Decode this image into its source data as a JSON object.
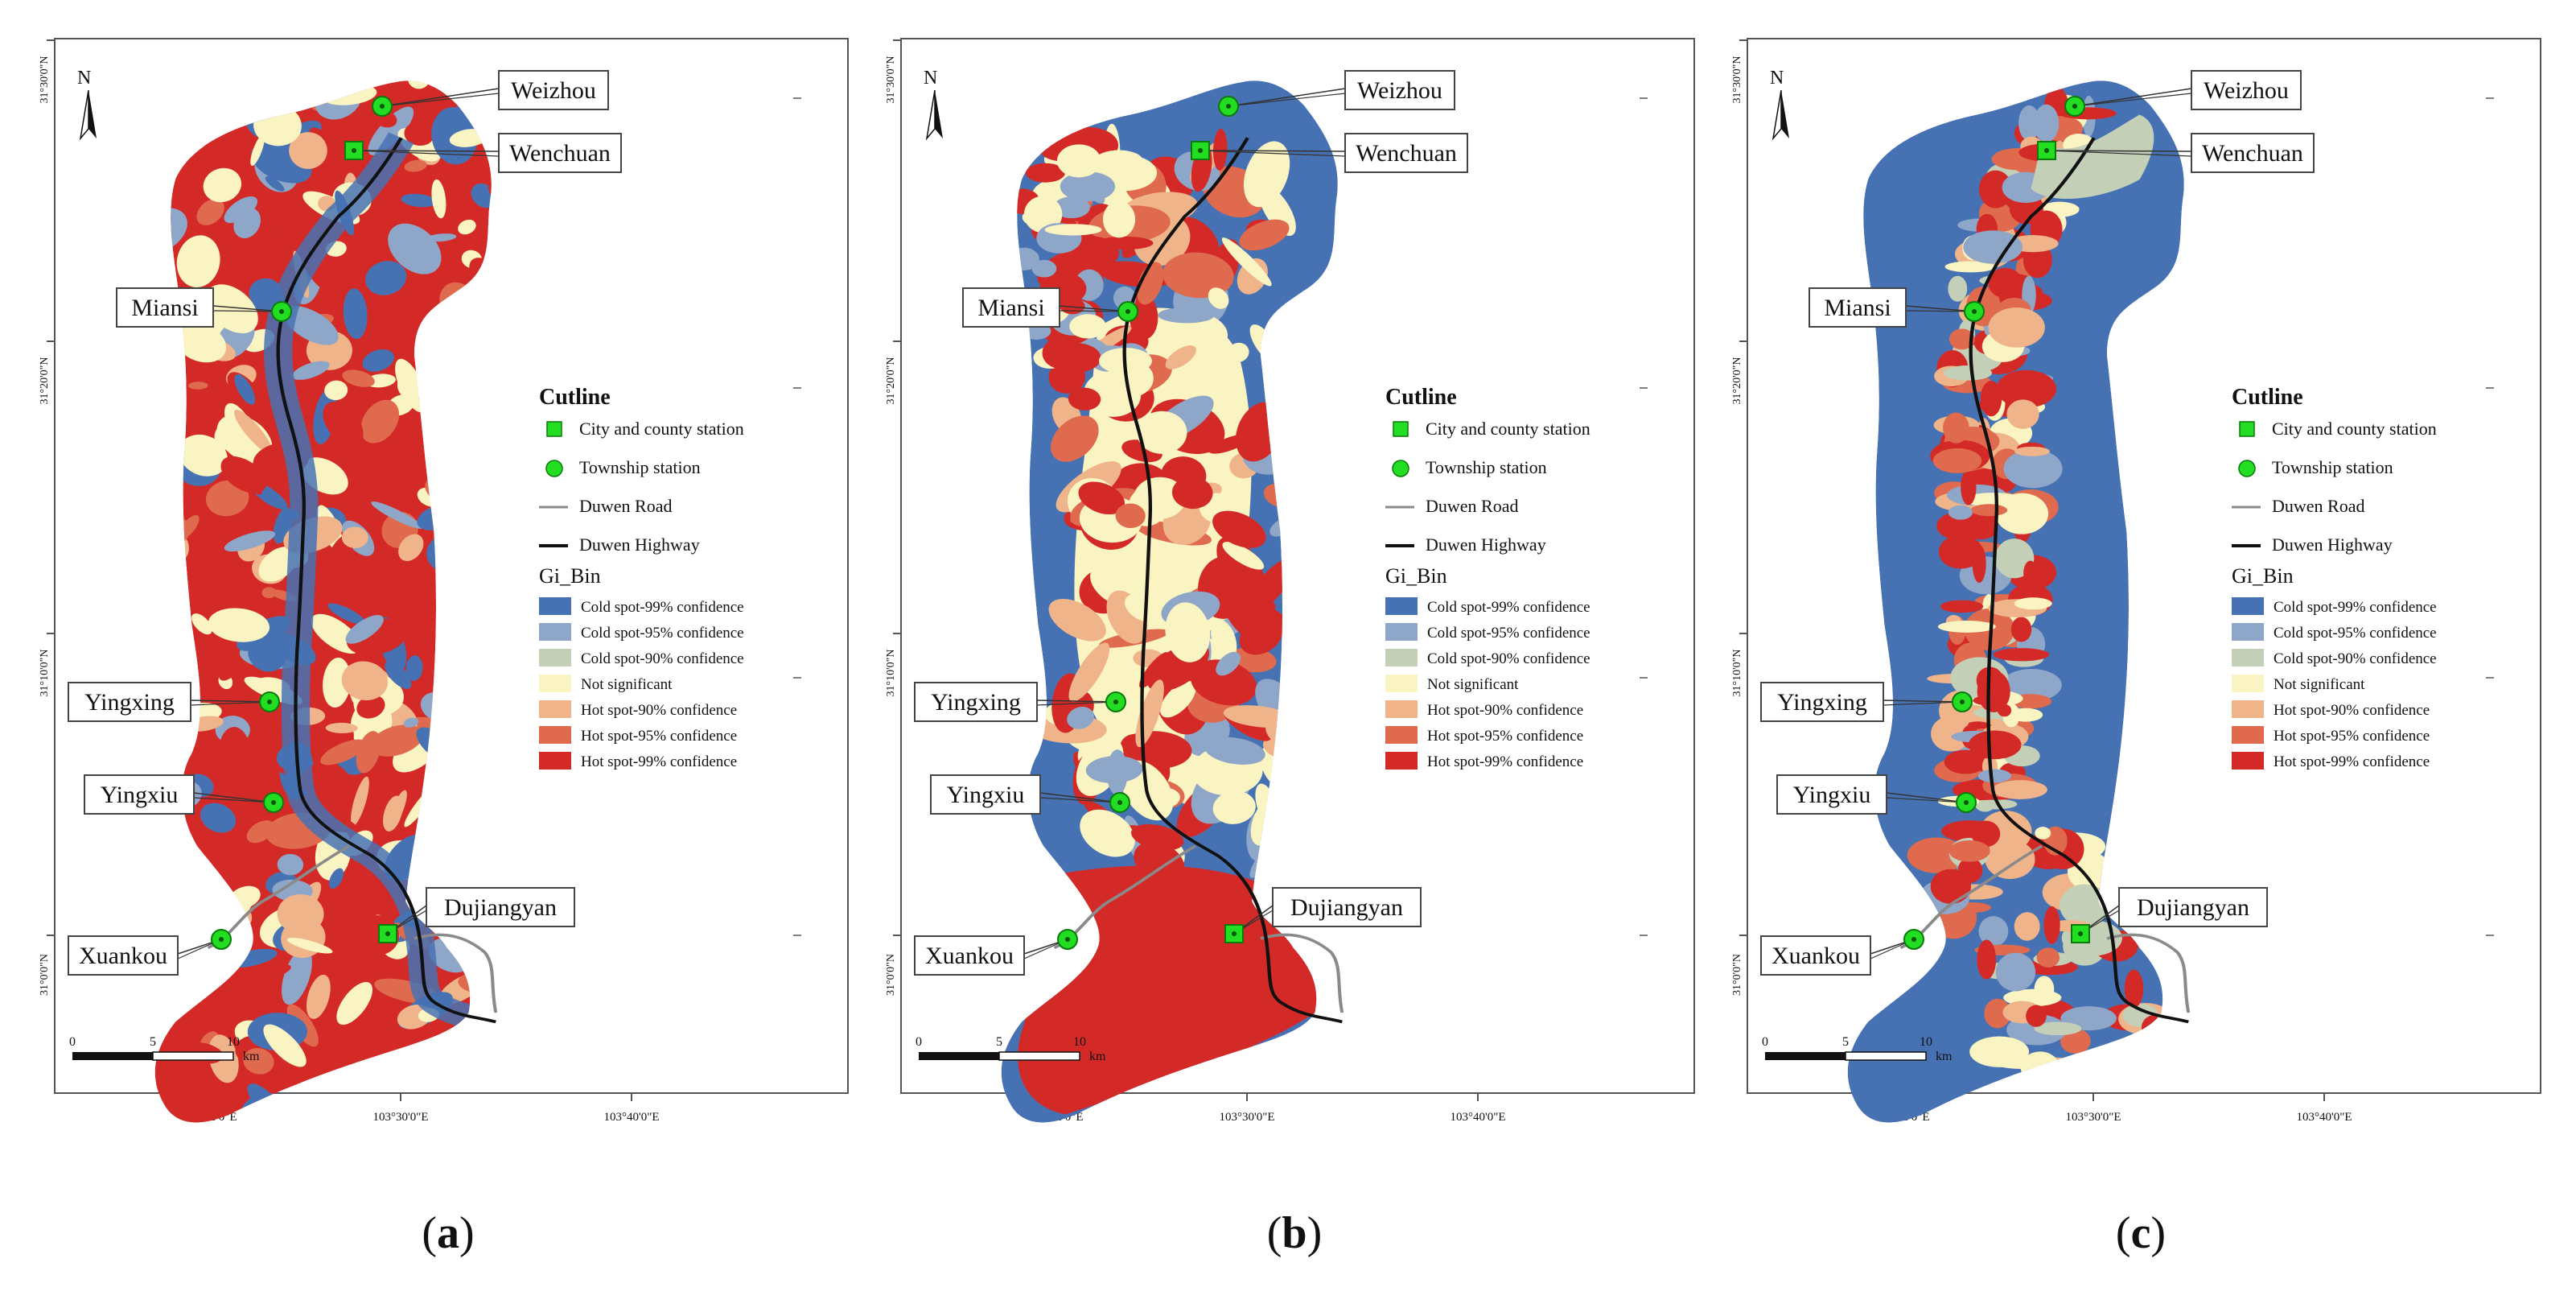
{
  "north": "N",
  "stations": {
    "weizhou": "Weizhou",
    "wenchuan": "Wenchuan",
    "miansi": "Miansi",
    "yingxing": "Yingxing",
    "yingxiu": "Yingxiu",
    "xuankou": "Xuankou",
    "dujiangyan": "Dujiangyan"
  },
  "legend": {
    "title": "Cutline",
    "city_station": "City and county station",
    "township_station": "Township station",
    "road": "Duwen Road",
    "highway": "Duwen Highway",
    "gi_title": "Gi_Bin",
    "classes": [
      {
        "label": "Cold spot-99% confidence",
        "color": "#4672b4"
      },
      {
        "label": "Cold spot-95% confidence",
        "color": "#8ea6c8"
      },
      {
        "label": "Cold spot-90% confidence",
        "color": "#c3cfb6"
      },
      {
        "label": "Not significant",
        "color": "#faf4c2"
      },
      {
        "label": "Hot spot-90% confidence",
        "color": "#efb48a"
      },
      {
        "label": "Hot spot-95% confidence",
        "color": "#df6a4d"
      },
      {
        "label": "Hot spot-99% confidence",
        "color": "#d42a27"
      }
    ]
  },
  "scale": {
    "ticks": [
      "0",
      "5",
      "10"
    ],
    "unit": "km"
  },
  "grid": {
    "lon": [
      "103°20'0\"E",
      "103°30'0\"E",
      "103°40'0\"E"
    ],
    "lat": [
      "31°20'0\"N",
      "31°10'0\"N",
      "31°0'0\"N",
      "31°30'0\"N"
    ]
  },
  "panels": [
    {
      "caption": "(a)",
      "letter": "a",
      "dominant": "mixed"
    },
    {
      "caption": "(b)",
      "letter": "b",
      "dominant": "cold-edge"
    },
    {
      "caption": "(c)",
      "letter": "c",
      "dominant": "cold"
    }
  ]
}
